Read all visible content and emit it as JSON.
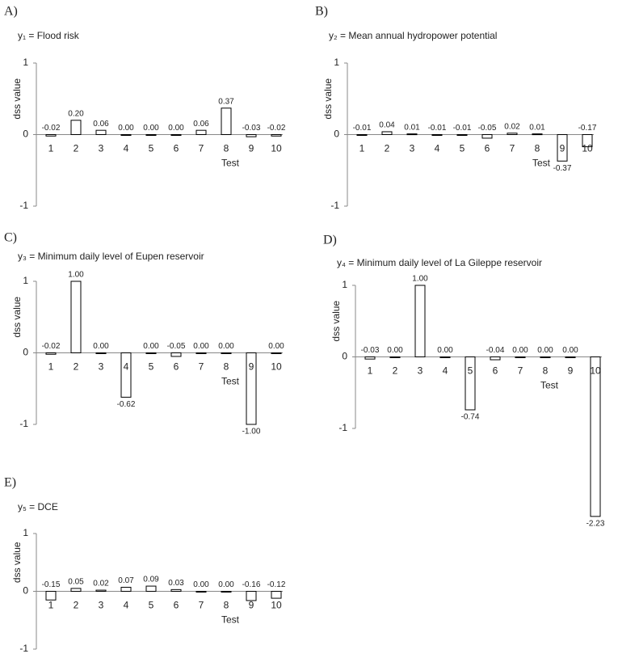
{
  "chart_data": [
    {
      "type": "bar",
      "panel": "A)",
      "title": "y₁ = Flood risk",
      "ylabel": "dss value",
      "xlabel": "Test",
      "categories": [
        "1",
        "2",
        "3",
        "4",
        "5",
        "6",
        "7",
        "8",
        "9",
        "10"
      ],
      "values": [
        -0.02,
        0.2,
        0.06,
        0,
        0,
        0,
        0.06,
        0.37,
        -0.03,
        -0.02
      ],
      "value_labels": [
        "-0.02",
        "0.20",
        "0.06",
        "0.00",
        "0.00",
        "0.00",
        "0.06",
        "0.37",
        "-0.03",
        "-0.02"
      ],
      "ylim": [
        -1,
        1
      ],
      "yticks": [
        -1,
        0,
        1
      ],
      "color": "#ffffff"
    },
    {
      "type": "bar",
      "panel": "B)",
      "title": "y₂ = Mean annual hydropower potential",
      "ylabel": "dss value",
      "xlabel": "Test",
      "categories": [
        "1",
        "2",
        "3",
        "4",
        "5",
        "6",
        "7",
        "8",
        "9",
        "10"
      ],
      "values": [
        -0.01,
        0.04,
        0.01,
        -0.01,
        -0.01,
        -0.05,
        0.02,
        0.01,
        -0.37,
        -0.17
      ],
      "value_labels": [
        "-0.01",
        "0.04",
        "0.01",
        "-0.01",
        "-0.01",
        "-0.05",
        "0.02",
        "0.01",
        "-0.37",
        "-0.17"
      ],
      "ylim": [
        -1,
        1
      ],
      "yticks": [
        -1,
        0,
        1
      ],
      "color": "#ffffff"
    },
    {
      "type": "bar",
      "panel": "C)",
      "title": "y₃ = Minimum daily level of Eupen reservoir",
      "ylabel": "dss value",
      "xlabel": "Test",
      "categories": [
        "1",
        "2",
        "3",
        "4",
        "5",
        "6",
        "7",
        "8",
        "9",
        "10"
      ],
      "values": [
        -0.02,
        1,
        0,
        -0.62,
        0,
        -0.05,
        0,
        0,
        -1,
        0
      ],
      "value_labels": [
        "-0.02",
        "1.00",
        "0.00",
        "-0.62",
        "0.00",
        "-0.05",
        "0.00",
        "0.00",
        "-1.00",
        "0.00"
      ],
      "ylim": [
        -1,
        1
      ],
      "yticks": [
        -1,
        0,
        1
      ],
      "color": "#ffffff"
    },
    {
      "type": "bar",
      "panel": "D)",
      "title": "y₄ = Minimum daily level of La Gileppe reservoir",
      "ylabel": "dss value",
      "xlabel": "Test",
      "categories": [
        "1",
        "2",
        "3",
        "4",
        "5",
        "6",
        "7",
        "8",
        "9",
        "10"
      ],
      "values": [
        -0.03,
        0,
        1,
        0,
        -0.74,
        -0.04,
        0,
        0,
        0,
        -2.23
      ],
      "value_labels": [
        "-0.03",
        "0.00",
        "1.00",
        "0.00",
        "-0.74",
        "-0.04",
        "0.00",
        "0.00",
        "0.00",
        "-2.23"
      ],
      "ylim": [
        -1,
        1
      ],
      "yticks": [
        -1,
        0,
        1
      ],
      "color": "#ffffff"
    },
    {
      "type": "bar",
      "panel": "E)",
      "title": "y₅ = DCE",
      "ylabel": "dss value",
      "xlabel": "Test",
      "categories": [
        "1",
        "2",
        "3",
        "4",
        "5",
        "6",
        "7",
        "8",
        "9",
        "10"
      ],
      "values": [
        -0.15,
        0.05,
        0.02,
        0.07,
        0.09,
        0.03,
        0,
        0,
        -0.16,
        -0.12
      ],
      "value_labels": [
        "-0.15",
        "0.05",
        "0.02",
        "0.07",
        "0.09",
        "0.03",
        "0.00",
        "0.00",
        "-0.16",
        "-0.12"
      ],
      "ylim": [
        -1,
        1
      ],
      "yticks": [
        -1,
        0,
        1
      ],
      "color": "#ffffff"
    }
  ]
}
